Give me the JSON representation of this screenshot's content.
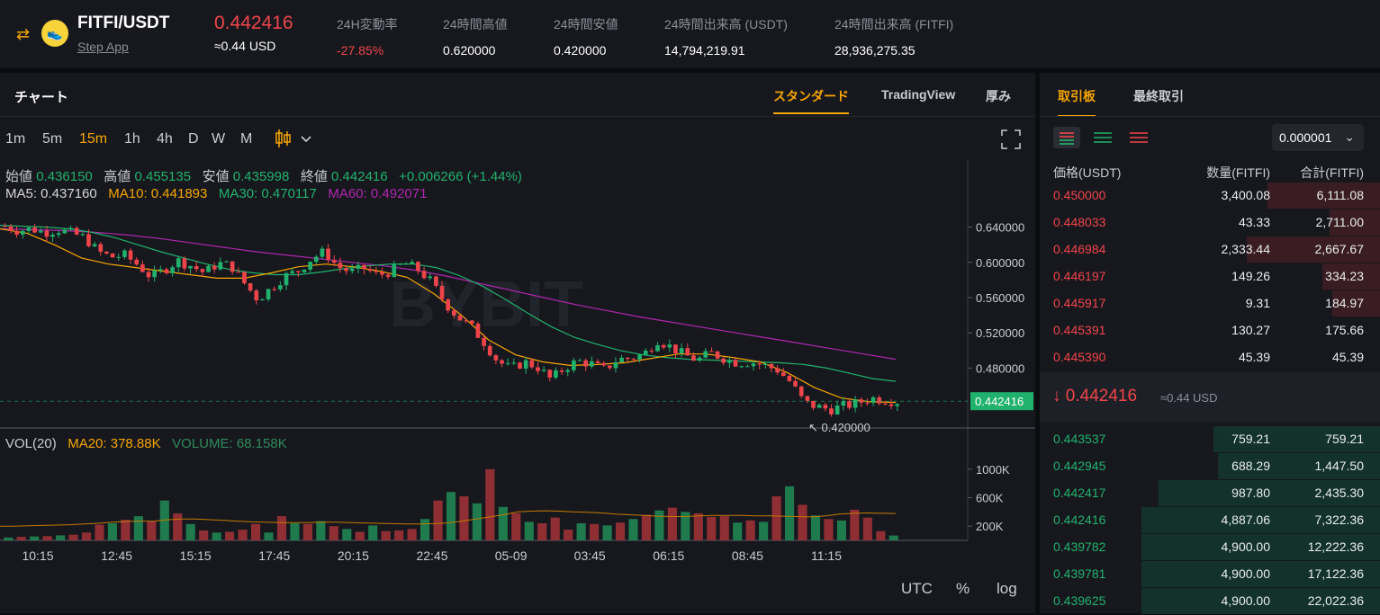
{
  "header": {
    "pair": "FITFI/USDT",
    "project_link": "Step App",
    "last_price": "0.442416",
    "last_price_usd": "≈0.44 USD",
    "stats": [
      {
        "label": "24H変動率",
        "value": "-27.85%",
        "color": "#ef454a"
      },
      {
        "label": "24時間高値",
        "value": "0.620000",
        "color": "#ffffff"
      },
      {
        "label": "24時間安値",
        "value": "0.420000",
        "color": "#ffffff"
      },
      {
        "label": "24時間出来高 (USDT)",
        "value": "14,794,219.91",
        "color": "#ffffff"
      },
      {
        "label": "24時間出来高 (FITFI)",
        "value": "28,936,275.35",
        "color": "#ffffff"
      }
    ]
  },
  "chart_panel": {
    "title": "チャート",
    "tabs": [
      "スタンダード",
      "TradingView",
      "厚み"
    ],
    "intervals": [
      "1m",
      "5m",
      "15m",
      "1h",
      "4h",
      "D",
      "W",
      "M"
    ],
    "active_interval": "15m",
    "ohlc": {
      "open_label": "始値",
      "open": "0.436150",
      "high_label": "高値",
      "high": "0.455135",
      "low_label": "安値",
      "low": "0.435998",
      "close_label": "終値",
      "close": "0.442416",
      "change": "+0.006266 (+1.44%)"
    },
    "ma": {
      "ma5": "MA5: 0.437160",
      "ma10": "MA10: 0.441893",
      "ma30": "MA30: 0.470117",
      "ma60": "MA60: 0.492071"
    },
    "vol": {
      "label": "VOL(20)",
      "ma20": "MA20: 378.88K",
      "volume": "VOLUME: 68.158K"
    },
    "watermark": "BYBIT",
    "footer": [
      "UTC",
      "%",
      "log"
    ]
  },
  "chart_data": {
    "type": "candlestick",
    "y_ticks": [
      "0.640000",
      "0.600000",
      "0.560000",
      "0.520000",
      "0.480000"
    ],
    "y_tick_values": [
      0.64,
      0.6,
      0.56,
      0.52,
      0.48
    ],
    "ylim": [
      0.412,
      0.662
    ],
    "current_price_label": "0.442416",
    "current_price": 0.442416,
    "low_marker": "0.420000",
    "low_value": 0.42,
    "vol_ticks": [
      "1000K",
      "600K",
      "200K"
    ],
    "vol_tick_values": [
      1000,
      600,
      200
    ],
    "x_ticks": [
      "10:15",
      "12:45",
      "15:15",
      "17:45",
      "20:15",
      "22:45",
      "05-09",
      "03:45",
      "06:15",
      "08:45",
      "11:15"
    ],
    "close_path": [
      0.641,
      0.636,
      0.638,
      0.634,
      0.637,
      0.633,
      0.628,
      0.612,
      0.606,
      0.608,
      0.597,
      0.583,
      0.592,
      0.602,
      0.596,
      0.588,
      0.599,
      0.596,
      0.576,
      0.558,
      0.571,
      0.584,
      0.59,
      0.604,
      0.612,
      0.595,
      0.589,
      0.593,
      0.585,
      0.59,
      0.599,
      0.592,
      0.578,
      0.555,
      0.538,
      0.527,
      0.509,
      0.488,
      0.479,
      0.487,
      0.481,
      0.467,
      0.48,
      0.488,
      0.485,
      0.478,
      0.49,
      0.491,
      0.496,
      0.512,
      0.504,
      0.495,
      0.489,
      0.497,
      0.491,
      0.486,
      0.487,
      0.483,
      0.478,
      0.464,
      0.441,
      0.436,
      0.433,
      0.437,
      0.44,
      0.446,
      0.444,
      0.442
    ],
    "volume_path_k": [
      40,
      50,
      55,
      60,
      70,
      80,
      110,
      220,
      240,
      290,
      340,
      270,
      560,
      380,
      230,
      140,
      110,
      120,
      150,
      230,
      110,
      340,
      240,
      230,
      270,
      200,
      160,
      120,
      210,
      130,
      140,
      160,
      300,
      560,
      680,
      620,
      520,
      1000,
      470,
      380,
      260,
      240,
      320,
      150,
      240,
      230,
      210,
      250,
      300,
      360,
      420,
      460,
      400,
      380,
      330,
      340,
      250,
      280,
      260,
      620,
      760,
      500,
      350,
      300,
      280,
      430,
      320,
      130,
      68
    ],
    "ma20_path_k": [
      200,
      200,
      205,
      210,
      215,
      220,
      230,
      240,
      255,
      265,
      270,
      270,
      290,
      300,
      300,
      290,
      280,
      270,
      260,
      255,
      250,
      250,
      250,
      255,
      255,
      250,
      245,
      240,
      235,
      230,
      230,
      235,
      245,
      270,
      300,
      330,
      360,
      400,
      410,
      415,
      410,
      400,
      395,
      385,
      370,
      360,
      350,
      340,
      335,
      335,
      345,
      350,
      350,
      350,
      345,
      345,
      340,
      335,
      330,
      345,
      370,
      380,
      385,
      380,
      378
    ],
    "ma30_path": [
      0.642,
      0.641,
      0.64,
      0.638,
      0.634,
      0.628,
      0.62,
      0.612,
      0.605,
      0.598,
      0.592,
      0.588,
      0.586,
      0.586,
      0.589,
      0.593,
      0.596,
      0.598,
      0.598,
      0.594,
      0.585,
      0.573,
      0.558,
      0.542,
      0.527,
      0.515,
      0.507,
      0.5,
      0.495,
      0.492,
      0.49,
      0.489,
      0.488,
      0.487,
      0.486,
      0.484,
      0.48,
      0.474,
      0.468,
      0.465
    ],
    "ma60_path": [
      0.638,
      0.637,
      0.636,
      0.634,
      0.631,
      0.627,
      0.622,
      0.617,
      0.612,
      0.608,
      0.604,
      0.6,
      0.596,
      0.591,
      0.584,
      0.576,
      0.568,
      0.56,
      0.552,
      0.545,
      0.538,
      0.532,
      0.526,
      0.52,
      0.514,
      0.508,
      0.502,
      0.496,
      0.49
    ],
    "ma10_path": [
      0.638,
      0.633,
      0.62,
      0.605,
      0.598,
      0.594,
      0.59,
      0.586,
      0.582,
      0.582,
      0.588,
      0.595,
      0.598,
      0.595,
      0.59,
      0.583,
      0.564,
      0.54,
      0.512,
      0.495,
      0.487,
      0.483,
      0.484,
      0.486,
      0.491,
      0.496,
      0.496,
      0.492,
      0.487,
      0.475,
      0.458,
      0.446,
      0.442,
      0.441
    ]
  },
  "order_book": {
    "tabs": [
      "取引板",
      "最終取引"
    ],
    "precision": "0.000001",
    "headers": [
      "価格(USDT)",
      "数量(FITFI)",
      "合計(FITFI)"
    ],
    "asks": [
      {
        "price": "0.450000",
        "qty": "3,400.08",
        "total": "6,111.08",
        "depth": 0.47
      },
      {
        "price": "0.448033",
        "qty": "43.33",
        "total": "2,711.00",
        "depth": 0.21
      },
      {
        "price": "0.446984",
        "qty": "2,333.44",
        "total": "2,667.67",
        "depth": 0.56
      },
      {
        "price": "0.446197",
        "qty": "149.26",
        "total": "334.23",
        "depth": 0.24
      },
      {
        "price": "0.445917",
        "qty": "9.31",
        "total": "184.97",
        "depth": 0.2
      },
      {
        "price": "0.445391",
        "qty": "130.27",
        "total": "175.66",
        "depth": 0.0
      },
      {
        "price": "0.445390",
        "qty": "45.39",
        "total": "45.39",
        "depth": 0.0
      }
    ],
    "mid_price": "0.442416",
    "mid_usd": "≈0.44 USD",
    "bids": [
      {
        "price": "0.443537",
        "qty": "759.21",
        "total": "759.21",
        "depth": 0.7
      },
      {
        "price": "0.442945",
        "qty": "688.29",
        "total": "1,447.50",
        "depth": 0.68
      },
      {
        "price": "0.442417",
        "qty": "987.80",
        "total": "2,435.30",
        "depth": 0.93
      },
      {
        "price": "0.442416",
        "qty": "4,887.06",
        "total": "7,322.36",
        "depth": 1.0
      },
      {
        "price": "0.439782",
        "qty": "4,900.00",
        "total": "12,222.36",
        "depth": 1.0
      },
      {
        "price": "0.439781",
        "qty": "4,900.00",
        "total": "17,122.36",
        "depth": 1.0
      },
      {
        "price": "0.439625",
        "qty": "4,900.00",
        "total": "22,022.36",
        "depth": 1.0
      }
    ]
  },
  "colors": {
    "up": "#20b26c",
    "down": "#ef454a",
    "accent": "#f7a600",
    "ma5": "#d7d7d7",
    "ma10": "#f7a600",
    "ma30": "#20b26c",
    "ma60": "#b026b0"
  }
}
